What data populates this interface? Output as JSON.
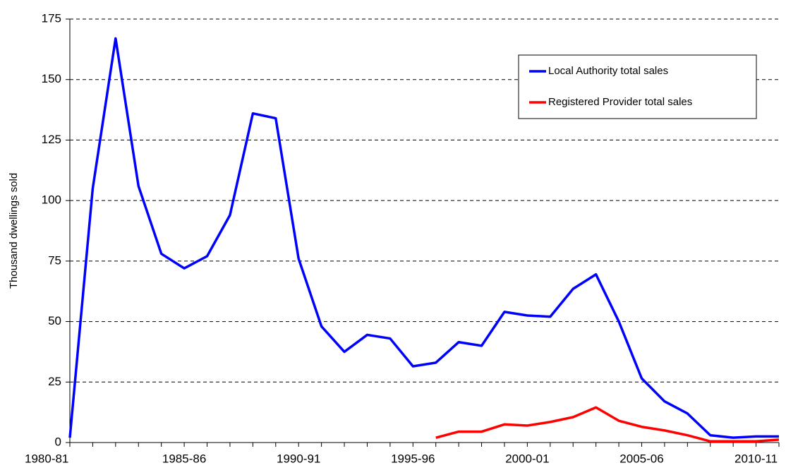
{
  "chart_data": {
    "type": "line",
    "y_label": "Thousand dwellings sold",
    "categories": [
      "1980-81",
      null,
      null,
      null,
      null,
      "1985-86",
      null,
      null,
      null,
      null,
      "1990-91",
      null,
      null,
      null,
      null,
      "1995-96",
      null,
      null,
      null,
      null,
      "2000-01",
      null,
      null,
      null,
      null,
      "2005-06",
      null,
      null,
      null,
      null,
      "2010-11",
      null
    ],
    "series": [
      {
        "name": "Local Authority total sales",
        "color": "#0000ff",
        "values": [
          2,
          105,
          167,
          106,
          78,
          72,
          77,
          94,
          136,
          134,
          76,
          48,
          37.5,
          44.5,
          43,
          31.5,
          33,
          41.5,
          40,
          54,
          52.5,
          52,
          63.5,
          69.5,
          50,
          26.5,
          17,
          12,
          3,
          2,
          2.5,
          2.5
        ]
      },
      {
        "name": "Registered Provider total sales",
        "color": "#ff0000",
        "values": [
          null,
          null,
          null,
          null,
          null,
          null,
          null,
          null,
          null,
          null,
          null,
          null,
          null,
          null,
          null,
          null,
          2,
          4.5,
          4.5,
          7.5,
          7,
          8.5,
          10.5,
          14.5,
          9,
          6.5,
          5,
          3,
          0.5,
          0.5,
          0.5,
          1.2
        ]
      }
    ],
    "ylim": [
      0,
      175
    ],
    "yticks": [
      0,
      25,
      50,
      75,
      100,
      125,
      150,
      175
    ],
    "grid": true
  }
}
